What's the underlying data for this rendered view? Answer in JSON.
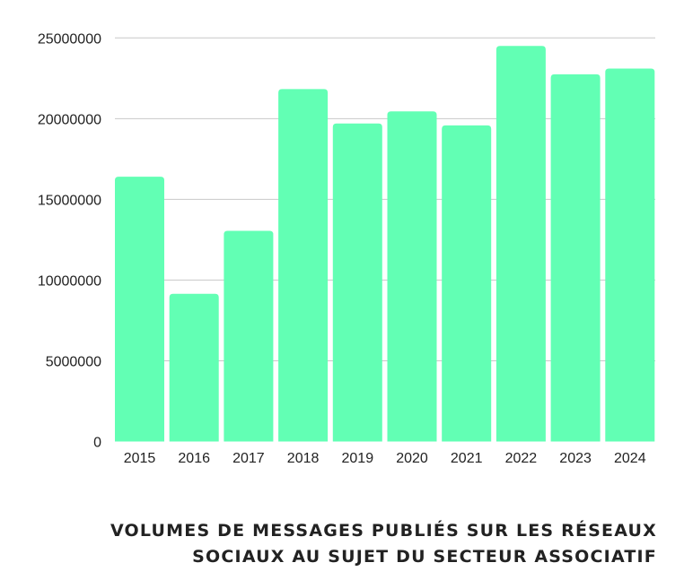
{
  "chart_data": {
    "type": "bar",
    "title_lines": [
      "VOLUMES DE MESSAGES PUBLIÉS SUR LES RÉSEAUX",
      "SOCIAUX AU SUJET DU SECTEUR ASSOCIATIF"
    ],
    "categories": [
      "2015",
      "2016",
      "2017",
      "2018",
      "2019",
      "2020",
      "2021",
      "2022",
      "2023",
      "2024"
    ],
    "values": [
      16400000,
      9150000,
      13050000,
      21830000,
      19700000,
      20450000,
      19580000,
      24500000,
      22750000,
      23100000
    ],
    "xlabel": "",
    "ylabel": "",
    "ylim": [
      0,
      25000000
    ],
    "yticks": [
      "0",
      "5000000",
      "10000000",
      "15000000",
      "20000000",
      "25000000"
    ],
    "grid": true,
    "bar_color": "#62FFB4",
    "grid_color": "#c8c8c8"
  }
}
